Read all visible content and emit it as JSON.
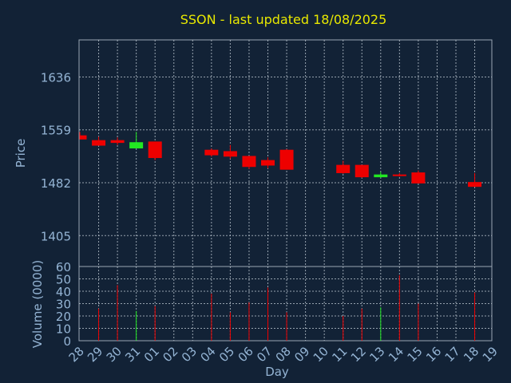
{
  "chart_data": [
    {
      "type": "candlestick",
      "title": "SSON - last updated 18/08/2025",
      "ylabel": "Price",
      "ylim": [
        1360,
        1690
      ],
      "yticks": [
        1405,
        1482,
        1559,
        1636
      ],
      "grid": true,
      "candles": [
        {
          "x": 0,
          "open": 1551,
          "high": 1556,
          "low": 1545,
          "close": 1545
        },
        {
          "x": 1,
          "open": 1544,
          "high": 1549,
          "low": 1536,
          "close": 1536
        },
        {
          "x": 2,
          "open": 1544,
          "high": 1548,
          "low": 1537,
          "close": 1540
        },
        {
          "x": 3,
          "open": 1532,
          "high": 1556,
          "low": 1532,
          "close": 1541
        },
        {
          "x": 4,
          "open": 1542,
          "high": 1542,
          "low": 1515,
          "close": 1518
        },
        {
          "x": 7,
          "open": 1530,
          "high": 1532,
          "low": 1520,
          "close": 1522
        },
        {
          "x": 8,
          "open": 1528,
          "high": 1537,
          "low": 1517,
          "close": 1520
        },
        {
          "x": 9,
          "open": 1521,
          "high": 1521,
          "low": 1502,
          "close": 1505
        },
        {
          "x": 10,
          "open": 1515,
          "high": 1519,
          "low": 1503,
          "close": 1507
        },
        {
          "x": 11,
          "open": 1530,
          "high": 1531,
          "low": 1501,
          "close": 1501
        },
        {
          "x": 14,
          "open": 1508,
          "high": 1514,
          "low": 1495,
          "close": 1496
        },
        {
          "x": 15,
          "open": 1508,
          "high": 1508,
          "low": 1489,
          "close": 1490
        },
        {
          "x": 16,
          "open": 1490,
          "high": 1498,
          "low": 1489,
          "close": 1494
        },
        {
          "x": 17,
          "open": 1494,
          "high": 1496,
          "low": 1491,
          "close": 1492
        },
        {
          "x": 18,
          "open": 1497,
          "high": 1500,
          "low": 1481,
          "close": 1481
        },
        {
          "x": 21,
          "open": 1483,
          "high": 1496,
          "low": 1476,
          "close": 1476
        }
      ],
      "colors": {
        "up": "#22e822",
        "down": "#ee0000",
        "background": "#122236",
        "text": "#94b4d4",
        "title": "#e8e800",
        "grid": "#b8c2cc"
      }
    },
    {
      "type": "bar",
      "ylabel": "Volume (0000)",
      "xlabel": "Day",
      "ylim": [
        0,
        60
      ],
      "yticks": [
        0,
        10,
        20,
        30,
        40,
        50,
        60
      ],
      "categories": [
        "28",
        "29",
        "30",
        "31",
        "01",
        "02",
        "03",
        "04",
        "05",
        "06",
        "07",
        "08",
        "09",
        "10",
        "11",
        "12",
        "13",
        "14",
        "15",
        "16",
        "17",
        "18",
        "19"
      ],
      "bars": [
        {
          "x": 1,
          "value": 26,
          "dir": "down"
        },
        {
          "x": 2,
          "value": 45,
          "dir": "down"
        },
        {
          "x": 3,
          "value": 24,
          "dir": "up"
        },
        {
          "x": 4,
          "value": 28,
          "dir": "down"
        },
        {
          "x": 7,
          "value": 38,
          "dir": "down"
        },
        {
          "x": 8,
          "value": 23,
          "dir": "down"
        },
        {
          "x": 9,
          "value": 31,
          "dir": "down"
        },
        {
          "x": 10,
          "value": 43,
          "dir": "down"
        },
        {
          "x": 11,
          "value": 23,
          "dir": "down"
        },
        {
          "x": 14,
          "value": 20,
          "dir": "down"
        },
        {
          "x": 15,
          "value": 26,
          "dir": "down"
        },
        {
          "x": 16,
          "value": 27,
          "dir": "up"
        },
        {
          "x": 17,
          "value": 53,
          "dir": "down"
        },
        {
          "x": 18,
          "value": 30,
          "dir": "down"
        },
        {
          "x": 21,
          "value": 39,
          "dir": "down"
        }
      ]
    }
  ]
}
